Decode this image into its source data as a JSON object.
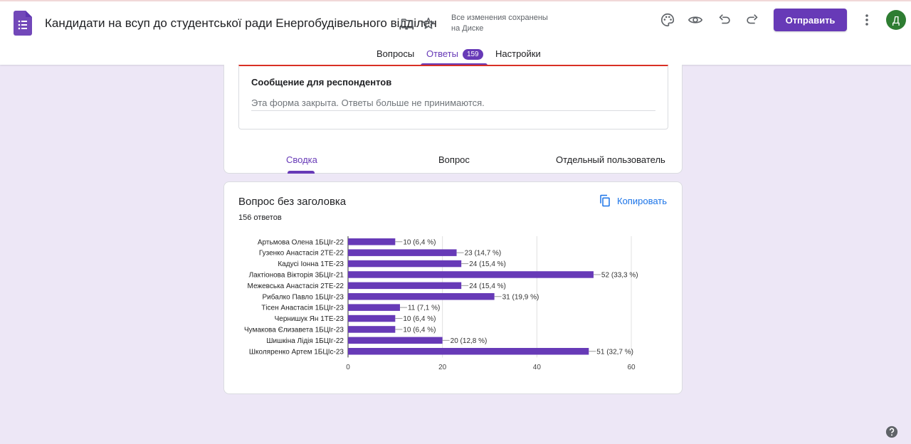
{
  "header": {
    "title": "Кандидати на всуп до студентської ради Енергобудівельного відділен",
    "saved_line1": "Все изменения сохранены",
    "saved_line2": "на Диске",
    "send_label": "Отправить",
    "avatar_letter": "Д",
    "icons": [
      "forms-logo-icon",
      "folder-icon",
      "star-icon",
      "palette-icon",
      "eye-icon",
      "undo-icon",
      "redo-icon",
      "more-vert-icon"
    ],
    "accent_color": "#673ab7"
  },
  "tabs": {
    "questions": "Вопросы",
    "responses": "Ответы",
    "responses_count": "159",
    "settings": "Настройки",
    "active": "responses"
  },
  "closed_form": {
    "label": "Сообщение для респондентов",
    "message": "Эта форма закрыта. Ответы больше не принимаются."
  },
  "subtabs": {
    "summary": "Сводка",
    "question": "Вопрос",
    "individual": "Отдельный пользователь",
    "active": "summary"
  },
  "question_card": {
    "title": "Вопрос без заголовка",
    "count": "156 ответов",
    "copy_label": "Копировать"
  },
  "chart_data": {
    "type": "bar",
    "orientation": "horizontal",
    "categories": [
      "Артьмова Олена 1БЦІг-22",
      "Гузенко Анастасія 2ТЕ-22",
      "Кадусі Іонна 1ТЕ-23",
      "Лактіонова Вікторія 3БЦІг-21",
      "Межевська Анастасія 2ТЕ-22",
      "Рибалко Павло 1БЦІг-23",
      "Тісен Анастасія 1БЦІг-23",
      "Чернишук Ян 1ТЕ-23",
      "Чумакова Єлизавета 1БЦІг-23",
      "Шишкіна Лідія 1БЦІг-22",
      "Школяренко Артем 1БЦІс-23"
    ],
    "values": [
      10,
      23,
      24,
      52,
      24,
      31,
      11,
      10,
      10,
      20,
      51
    ],
    "data_labels": [
      "10 (6,4 %)",
      "23 (14,7 %)",
      "24 (15,4 %)",
      "52 (33,3 %)",
      "24 (15,4 %)",
      "31 (19,9 %)",
      "11 (7,1 %)",
      "10 (6,4 %)",
      "10 (6,4 %)",
      "20 (12,8 %)",
      "51 (32,7 %)"
    ],
    "xlim": [
      0,
      60
    ],
    "xticks": [
      0,
      20,
      40,
      60
    ],
    "grid": true,
    "bar_color": "#673ab7"
  }
}
